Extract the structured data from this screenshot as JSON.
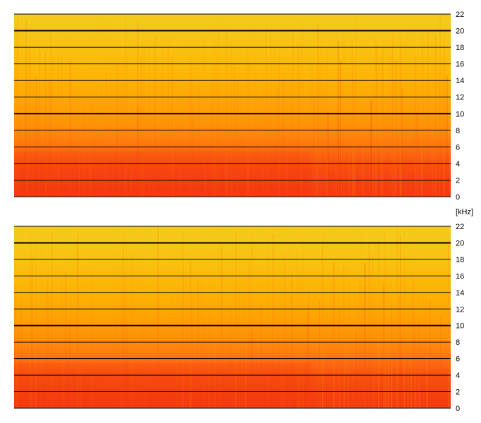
{
  "chart_data": [
    {
      "type": "heatmap",
      "title": "",
      "xlabel": "",
      "ylabel": "[kHz]",
      "ylim": [
        0,
        22
      ],
      "yticks": [
        "0",
        "2",
        "4",
        "6",
        "8",
        "10",
        "12",
        "14",
        "16",
        "18",
        "20",
        "22"
      ],
      "bold_gridlines": [
        10,
        20
      ],
      "colormap": [
        "#f2d020",
        "#ffb000",
        "#ff7a10",
        "#f23010"
      ],
      "band_intensity": [
        {
          "khz": 0,
          "level": 0.95
        },
        {
          "khz": 2,
          "level": 0.92
        },
        {
          "khz": 4,
          "level": 0.85
        },
        {
          "khz": 6,
          "level": 0.7
        },
        {
          "khz": 8,
          "level": 0.55
        },
        {
          "khz": 10,
          "level": 0.45
        },
        {
          "khz": 14,
          "level": 0.3
        },
        {
          "khz": 18,
          "level": 0.15
        },
        {
          "khz": 22,
          "level": 0.05
        }
      ]
    },
    {
      "type": "heatmap",
      "title": "",
      "xlabel": "",
      "ylabel": "",
      "ylim": [
        0,
        22
      ],
      "yticks": [
        "0",
        "2",
        "4",
        "6",
        "8",
        "10",
        "12",
        "14",
        "16",
        "18",
        "20",
        "22"
      ],
      "bold_gridlines": [
        10,
        20
      ],
      "colormap": [
        "#f2d020",
        "#ffb000",
        "#ff7a10",
        "#f23010"
      ],
      "band_intensity": [
        {
          "khz": 0,
          "level": 0.95
        },
        {
          "khz": 2,
          "level": 0.92
        },
        {
          "khz": 4,
          "level": 0.85
        },
        {
          "khz": 6,
          "level": 0.7
        },
        {
          "khz": 8,
          "level": 0.55
        },
        {
          "khz": 10,
          "level": 0.45
        },
        {
          "khz": 14,
          "level": 0.3
        },
        {
          "khz": 18,
          "level": 0.15
        },
        {
          "khz": 22,
          "level": 0.05
        }
      ]
    }
  ]
}
